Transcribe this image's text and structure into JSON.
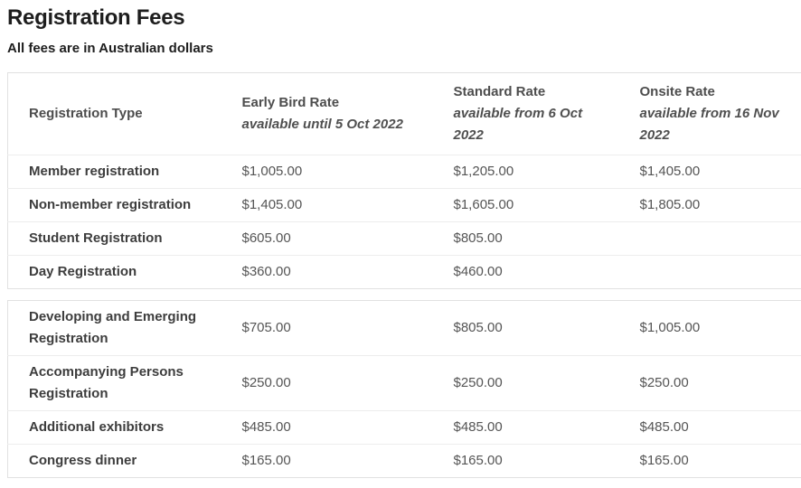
{
  "page": {
    "title": "Registration Fees",
    "subtitle": "All fees are in Australian dollars"
  },
  "table": {
    "headers": [
      {
        "label": "Registration Type",
        "note": ""
      },
      {
        "label": "Early Bird Rate",
        "note": "available until 5 Oct 2022"
      },
      {
        "label": "Standard Rate",
        "note": "available from 6 Oct 2022"
      },
      {
        "label": "Onsite Rate",
        "note": "available from 16 Nov 2022"
      }
    ],
    "currency_note": "All fees are in Australian dollars",
    "main_rows": [
      {
        "type": "Member registration",
        "early_bird": "$1,005.00",
        "standard": "$1,205.00",
        "onsite": "$1,405.00"
      },
      {
        "type": "Non-member registration",
        "early_bird": "$1,405.00",
        "standard": "$1,605.00",
        "onsite": "$1,805.00"
      },
      {
        "type": "Student Registration",
        "early_bird": "$605.00",
        "standard": "$805.00",
        "onsite": ""
      },
      {
        "type": "Day Registration",
        "early_bird": "$360.00",
        "standard": "$460.00",
        "onsite": ""
      }
    ],
    "extra_rows": [
      {
        "type": "Developing and Emerging Registration",
        "early_bird": "$705.00",
        "standard": "$805.00",
        "onsite": "$1,005.00"
      },
      {
        "type": "Accompanying Persons Registration",
        "early_bird": "$250.00",
        "standard": "$250.00",
        "onsite": "$250.00"
      },
      {
        "type": "Additional exhibitors",
        "early_bird": "$485.00",
        "standard": "$485.00",
        "onsite": "$485.00"
      },
      {
        "type": "Congress dinner",
        "early_bird": "$165.00",
        "standard": "$165.00",
        "onsite": "$165.00"
      }
    ]
  }
}
